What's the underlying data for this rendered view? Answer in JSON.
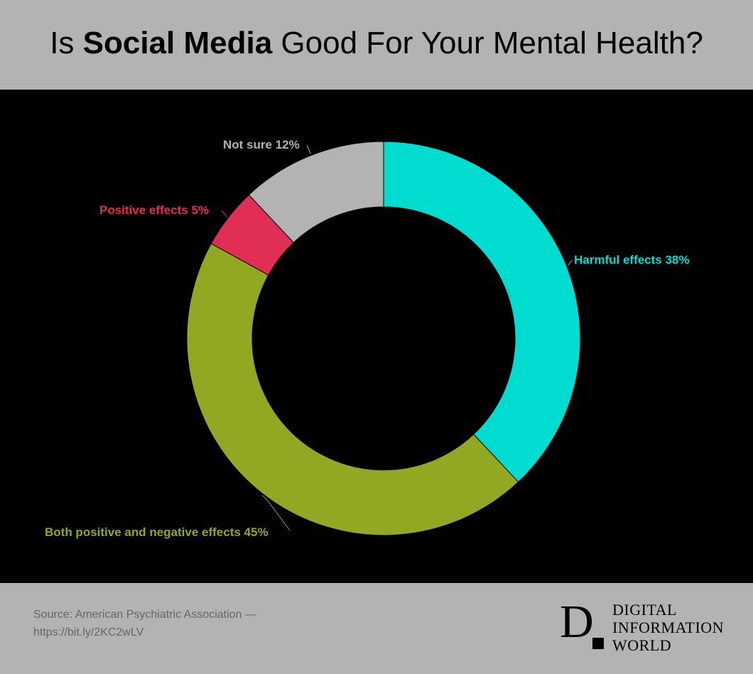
{
  "header": {
    "title_prefix": "Is ",
    "title_bold": "Social Media",
    "title_suffix": " Good For Your Mental Health?"
  },
  "chart_data": {
    "type": "pie",
    "subtype": "donut",
    "slices": [
      {
        "label": "Harmful effects",
        "value": 38,
        "display": "Harmful effects 38%",
        "color": "#00ddd0",
        "label_color": "#00ddd0"
      },
      {
        "label": "Both positive and negative effects",
        "value": 45,
        "display": "Both positive and negative effects 45%",
        "color": "#92a823",
        "label_color": "#92a823"
      },
      {
        "label": "Positive effects",
        "value": 5,
        "display": "Positive effects 5%",
        "color": "#e02e55",
        "label_color": "#e02e55"
      },
      {
        "label": "Not sure",
        "value": 12,
        "display": "Not sure 12%",
        "color": "#b3b3b3",
        "label_color": "#b3b3b3"
      }
    ],
    "start": "top",
    "direction": "clockwise"
  },
  "footer": {
    "source_line1": "Source: American Psychiatric Association —",
    "source_line2": "https://bit.ly/2KC2wLV",
    "logo_letter": "D",
    "logo_line1": "DIGITAL",
    "logo_line2": "INFORMATION",
    "logo_line3": "WORLD"
  }
}
